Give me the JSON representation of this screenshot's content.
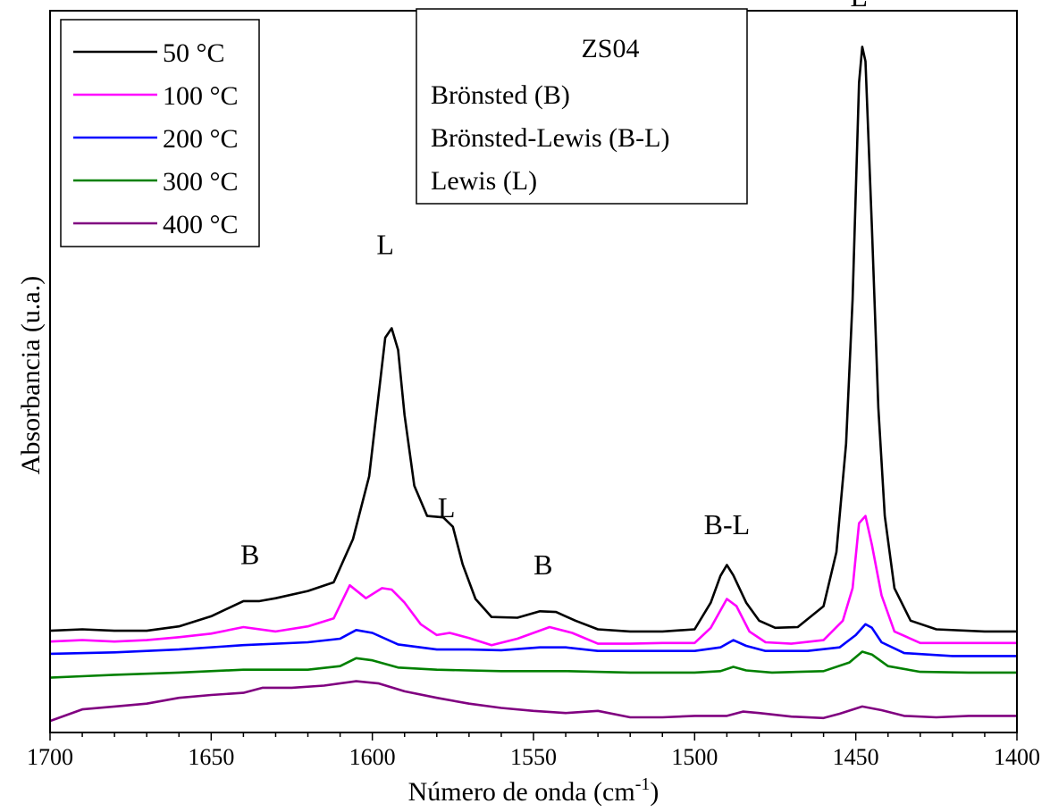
{
  "chart_data": {
    "type": "line",
    "title": "",
    "xlabel": "Número de onda (cm",
    "xlabel_sup": "-1",
    "xlabel_close": ")",
    "ylabel": "Absorbancia (u.a.)",
    "xlim": [
      1700,
      1400
    ],
    "x_reversed": true,
    "ylim": [
      0,
      1
    ],
    "y_ticks_shown": false,
    "grid": false,
    "legend_placement": "top-left",
    "x_ticks": [
      "1700",
      "1650",
      "1600",
      "1550",
      "1500",
      "1450",
      "1400"
    ],
    "x_tick_values": [
      1700,
      1650,
      1600,
      1550,
      1500,
      1450,
      1400
    ],
    "x_minor_step": 10,
    "info_box": {
      "title": "ZS04",
      "lines": [
        "Brönsted (B)",
        "Brönsted-Lewis (B-L)",
        "Lewis (L)"
      ]
    },
    "peak_labels": [
      {
        "text": "B",
        "x": 1638,
        "y": 0.233
      },
      {
        "text": "L",
        "x": 1596,
        "y": 0.663
      },
      {
        "text": "L",
        "x": 1577,
        "y": 0.298
      },
      {
        "text": "B",
        "x": 1547,
        "y": 0.219
      },
      {
        "text": "B-L",
        "x": 1490,
        "y": 0.275
      },
      {
        "text": "L",
        "x": 1449,
        "y": 1.006
      }
    ],
    "series": [
      {
        "name": "50 °C",
        "color": "#000000",
        "points": [
          [
            1700,
            0.141
          ],
          [
            1690,
            0.143
          ],
          [
            1680,
            0.141
          ],
          [
            1670,
            0.141
          ],
          [
            1660,
            0.147
          ],
          [
            1650,
            0.161
          ],
          [
            1640,
            0.182
          ],
          [
            1635,
            0.182
          ],
          [
            1630,
            0.186
          ],
          [
            1620,
            0.196
          ],
          [
            1612,
            0.208
          ],
          [
            1606,
            0.268
          ],
          [
            1601,
            0.355
          ],
          [
            1598,
            0.47
          ],
          [
            1596,
            0.547
          ],
          [
            1594,
            0.56
          ],
          [
            1592,
            0.53
          ],
          [
            1590,
            0.44
          ],
          [
            1587,
            0.342
          ],
          [
            1583,
            0.3
          ],
          [
            1578,
            0.298
          ],
          [
            1575,
            0.285
          ],
          [
            1572,
            0.233
          ],
          [
            1568,
            0.185
          ],
          [
            1563,
            0.16
          ],
          [
            1555,
            0.159
          ],
          [
            1548,
            0.168
          ],
          [
            1543,
            0.167
          ],
          [
            1537,
            0.155
          ],
          [
            1530,
            0.143
          ],
          [
            1520,
            0.14
          ],
          [
            1510,
            0.14
          ],
          [
            1500,
            0.143
          ],
          [
            1495,
            0.18
          ],
          [
            1492,
            0.217
          ],
          [
            1490,
            0.232
          ],
          [
            1488,
            0.218
          ],
          [
            1484,
            0.18
          ],
          [
            1480,
            0.155
          ],
          [
            1475,
            0.145
          ],
          [
            1468,
            0.146
          ],
          [
            1460,
            0.175
          ],
          [
            1456,
            0.25
          ],
          [
            1453,
            0.4
          ],
          [
            1451,
            0.6
          ],
          [
            1449,
            0.9
          ],
          [
            1448,
            0.95
          ],
          [
            1447,
            0.93
          ],
          [
            1445,
            0.7
          ],
          [
            1443,
            0.45
          ],
          [
            1441,
            0.3
          ],
          [
            1438,
            0.2
          ],
          [
            1433,
            0.155
          ],
          [
            1425,
            0.143
          ],
          [
            1410,
            0.14
          ],
          [
            1400,
            0.14
          ]
        ]
      },
      {
        "name": "100 °C",
        "color": "#ff00ff",
        "points": [
          [
            1700,
            0.126
          ],
          [
            1690,
            0.128
          ],
          [
            1680,
            0.126
          ],
          [
            1670,
            0.128
          ],
          [
            1660,
            0.132
          ],
          [
            1650,
            0.137
          ],
          [
            1640,
            0.146
          ],
          [
            1630,
            0.14
          ],
          [
            1620,
            0.147
          ],
          [
            1612,
            0.158
          ],
          [
            1607,
            0.204
          ],
          [
            1602,
            0.186
          ],
          [
            1597,
            0.2
          ],
          [
            1594,
            0.198
          ],
          [
            1590,
            0.18
          ],
          [
            1585,
            0.15
          ],
          [
            1580,
            0.135
          ],
          [
            1576,
            0.138
          ],
          [
            1570,
            0.131
          ],
          [
            1563,
            0.121
          ],
          [
            1555,
            0.13
          ],
          [
            1545,
            0.146
          ],
          [
            1538,
            0.138
          ],
          [
            1530,
            0.123
          ],
          [
            1520,
            0.123
          ],
          [
            1510,
            0.124
          ],
          [
            1500,
            0.124
          ],
          [
            1495,
            0.145
          ],
          [
            1490,
            0.185
          ],
          [
            1487,
            0.175
          ],
          [
            1483,
            0.14
          ],
          [
            1478,
            0.125
          ],
          [
            1470,
            0.123
          ],
          [
            1460,
            0.128
          ],
          [
            1454,
            0.155
          ],
          [
            1451,
            0.2
          ],
          [
            1449,
            0.29
          ],
          [
            1447,
            0.3
          ],
          [
            1445,
            0.26
          ],
          [
            1442,
            0.19
          ],
          [
            1438,
            0.14
          ],
          [
            1430,
            0.124
          ],
          [
            1420,
            0.124
          ],
          [
            1400,
            0.124
          ]
        ]
      },
      {
        "name": "200 °C",
        "color": "#0000ff",
        "points": [
          [
            1700,
            0.109
          ],
          [
            1680,
            0.111
          ],
          [
            1660,
            0.115
          ],
          [
            1640,
            0.121
          ],
          [
            1620,
            0.125
          ],
          [
            1610,
            0.13
          ],
          [
            1605,
            0.142
          ],
          [
            1600,
            0.138
          ],
          [
            1592,
            0.122
          ],
          [
            1580,
            0.115
          ],
          [
            1570,
            0.115
          ],
          [
            1560,
            0.114
          ],
          [
            1548,
            0.118
          ],
          [
            1540,
            0.118
          ],
          [
            1530,
            0.113
          ],
          [
            1520,
            0.113
          ],
          [
            1500,
            0.113
          ],
          [
            1492,
            0.118
          ],
          [
            1488,
            0.128
          ],
          [
            1484,
            0.12
          ],
          [
            1478,
            0.113
          ],
          [
            1465,
            0.113
          ],
          [
            1455,
            0.118
          ],
          [
            1450,
            0.135
          ],
          [
            1447,
            0.15
          ],
          [
            1445,
            0.145
          ],
          [
            1442,
            0.125
          ],
          [
            1435,
            0.11
          ],
          [
            1420,
            0.106
          ],
          [
            1400,
            0.106
          ]
        ]
      },
      {
        "name": "300 °C",
        "color": "#008000",
        "points": [
          [
            1700,
            0.076
          ],
          [
            1690,
            0.078
          ],
          [
            1680,
            0.08
          ],
          [
            1660,
            0.083
          ],
          [
            1640,
            0.087
          ],
          [
            1620,
            0.087
          ],
          [
            1610,
            0.092
          ],
          [
            1605,
            0.103
          ],
          [
            1600,
            0.1
          ],
          [
            1592,
            0.09
          ],
          [
            1580,
            0.087
          ],
          [
            1560,
            0.085
          ],
          [
            1540,
            0.085
          ],
          [
            1520,
            0.083
          ],
          [
            1500,
            0.083
          ],
          [
            1492,
            0.085
          ],
          [
            1488,
            0.091
          ],
          [
            1484,
            0.086
          ],
          [
            1476,
            0.083
          ],
          [
            1460,
            0.085
          ],
          [
            1452,
            0.097
          ],
          [
            1448,
            0.112
          ],
          [
            1445,
            0.108
          ],
          [
            1440,
            0.092
          ],
          [
            1430,
            0.084
          ],
          [
            1415,
            0.083
          ],
          [
            1400,
            0.083
          ]
        ]
      },
      {
        "name": "400 °C",
        "color": "#800080",
        "points": [
          [
            1700,
            0.016
          ],
          [
            1690,
            0.032
          ],
          [
            1680,
            0.036
          ],
          [
            1670,
            0.04
          ],
          [
            1660,
            0.048
          ],
          [
            1650,
            0.052
          ],
          [
            1640,
            0.055
          ],
          [
            1634,
            0.062
          ],
          [
            1625,
            0.062
          ],
          [
            1615,
            0.065
          ],
          [
            1605,
            0.071
          ],
          [
            1598,
            0.068
          ],
          [
            1590,
            0.057
          ],
          [
            1580,
            0.048
          ],
          [
            1570,
            0.04
          ],
          [
            1560,
            0.034
          ],
          [
            1550,
            0.03
          ],
          [
            1540,
            0.027
          ],
          [
            1530,
            0.03
          ],
          [
            1520,
            0.021
          ],
          [
            1510,
            0.021
          ],
          [
            1500,
            0.023
          ],
          [
            1490,
            0.023
          ],
          [
            1485,
            0.029
          ],
          [
            1480,
            0.027
          ],
          [
            1470,
            0.022
          ],
          [
            1460,
            0.02
          ],
          [
            1455,
            0.026
          ],
          [
            1448,
            0.036
          ],
          [
            1442,
            0.031
          ],
          [
            1435,
            0.023
          ],
          [
            1425,
            0.021
          ],
          [
            1415,
            0.023
          ],
          [
            1400,
            0.023
          ]
        ]
      }
    ]
  }
}
